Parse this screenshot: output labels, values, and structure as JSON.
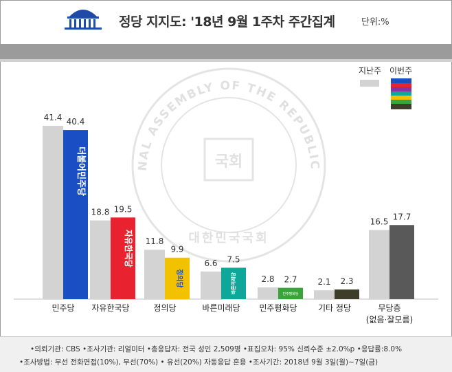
{
  "header": {
    "title": "정당 지지도: '18년 9월 1주차 주간집계",
    "unit": "단위:%"
  },
  "legend": {
    "last_week": "지난주",
    "this_week": "이번주"
  },
  "watermark": {
    "ring_text": "THE NATIONAL ASSEMBLY OF THE REPUBLIC OF KOREA",
    "center_text": "국회",
    "bottom_text": "대한민국국회"
  },
  "chart_data": {
    "type": "bar",
    "title": "정당 지지도: '18년 9월 1주차 주간집계",
    "unit": "%",
    "categories": [
      "민주당",
      "자유한국당",
      "정의당",
      "바른미래당",
      "민주평화당",
      "기타 정당",
      "무당층"
    ],
    "category_sublabels": [
      "",
      "",
      "",
      "",
      "",
      "",
      "(없음·잘모름)"
    ],
    "series": [
      {
        "name": "지난주",
        "values": [
          41.4,
          18.8,
          11.8,
          6.6,
          2.8,
          2.1,
          16.5
        ],
        "color": "#d3d3d3"
      },
      {
        "name": "이번주",
        "values": [
          40.4,
          19.5,
          9.9,
          7.5,
          2.7,
          2.3,
          17.7
        ],
        "colors": [
          "#1a4fc4",
          "#e8222e",
          "#f2c200",
          "#0fa79a",
          "#3aa43a",
          "#3d3d2a",
          "#595959"
        ]
      }
    ],
    "value_labels": {
      "last": [
        "41.4",
        "18.8",
        "11.8",
        "6.6",
        "2.8",
        "2.1",
        "16.5"
      ],
      "this": [
        "40.4",
        "19.5",
        "9.9",
        "7.5",
        "2.7",
        "2.3",
        "17.7"
      ]
    },
    "bar_logos": [
      "더불어민주당",
      "자유한국당",
      "정의당",
      "바른미래당",
      "민주평화당",
      "",
      ""
    ],
    "ylim": [
      0,
      45
    ],
    "xlabel": "",
    "ylabel": ""
  },
  "footer": {
    "line1": "•의뢰기관: CBS •조사기관: 리얼미터 •총응답자: 전국 성인 2,509명 •표집오차: 95% 신뢰수준 ±2.0%p •응답률:8.0%",
    "line2": "•조사방법: 무선 전화면접(10%), 무선(70%) • 유선(20%) 자동응답 혼용 •조사기간: 2018년 9월 3일(월)~7일(금)"
  }
}
